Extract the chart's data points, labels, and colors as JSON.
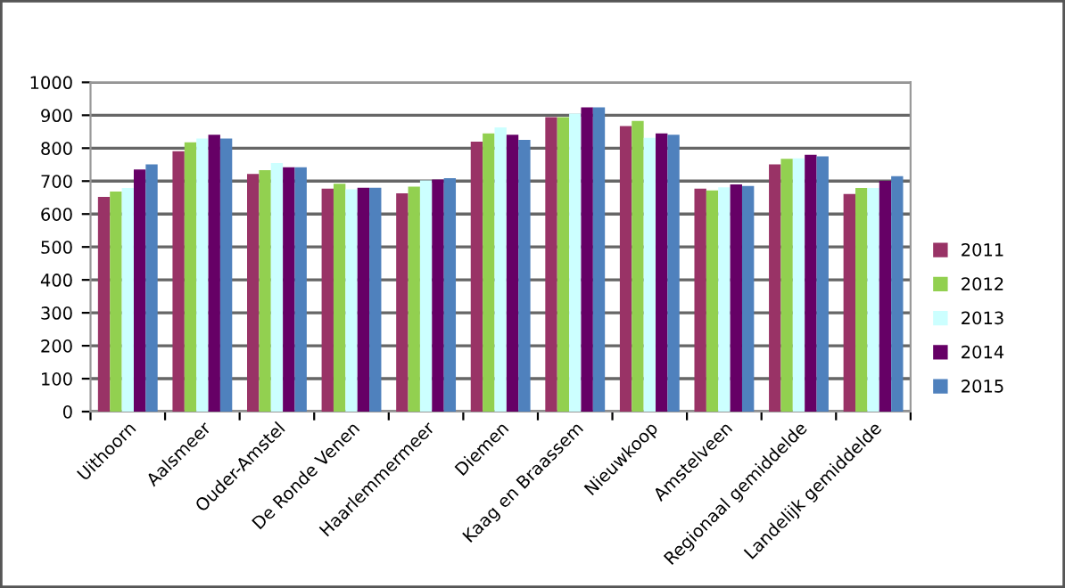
{
  "chart_data": {
    "type": "bar",
    "categories": [
      "Uithoorn",
      "Aalsmeer",
      "Ouder-Amstel",
      "De Ronde Venen",
      "Haarlemmermeer",
      "Diemen",
      "Kaag en Braassem",
      "Nieuwkoop",
      "Amstelveen",
      "Regionaal gemiddelde",
      "Landelijk gemiddelde"
    ],
    "series": [
      {
        "name": "2011",
        "color": "#993366",
        "values": [
          652,
          791,
          722,
          677,
          663,
          820,
          894,
          867,
          677,
          751,
          661
        ]
      },
      {
        "name": "2012",
        "color": "#92d050",
        "values": [
          668,
          818,
          733,
          692,
          683,
          845,
          894,
          883,
          672,
          768,
          679
        ]
      },
      {
        "name": "2013",
        "color": "#ccffff",
        "values": [
          679,
          829,
          755,
          675,
          702,
          863,
          905,
          831,
          681,
          769,
          679
        ]
      },
      {
        "name": "2014",
        "color": "#660066",
        "values": [
          735,
          841,
          742,
          680,
          705,
          841,
          924,
          845,
          690,
          780,
          701
        ]
      },
      {
        "name": "2015",
        "color": "#4f81bd",
        "values": [
          751,
          829,
          742,
          680,
          709,
          825,
          924,
          841,
          685,
          775,
          715
        ]
      }
    ],
    "ylim": [
      0,
      1000
    ],
    "yticks": [
      0,
      100,
      200,
      300,
      400,
      500,
      600,
      700,
      800,
      900,
      1000
    ],
    "grid": "y",
    "legend": "right"
  }
}
